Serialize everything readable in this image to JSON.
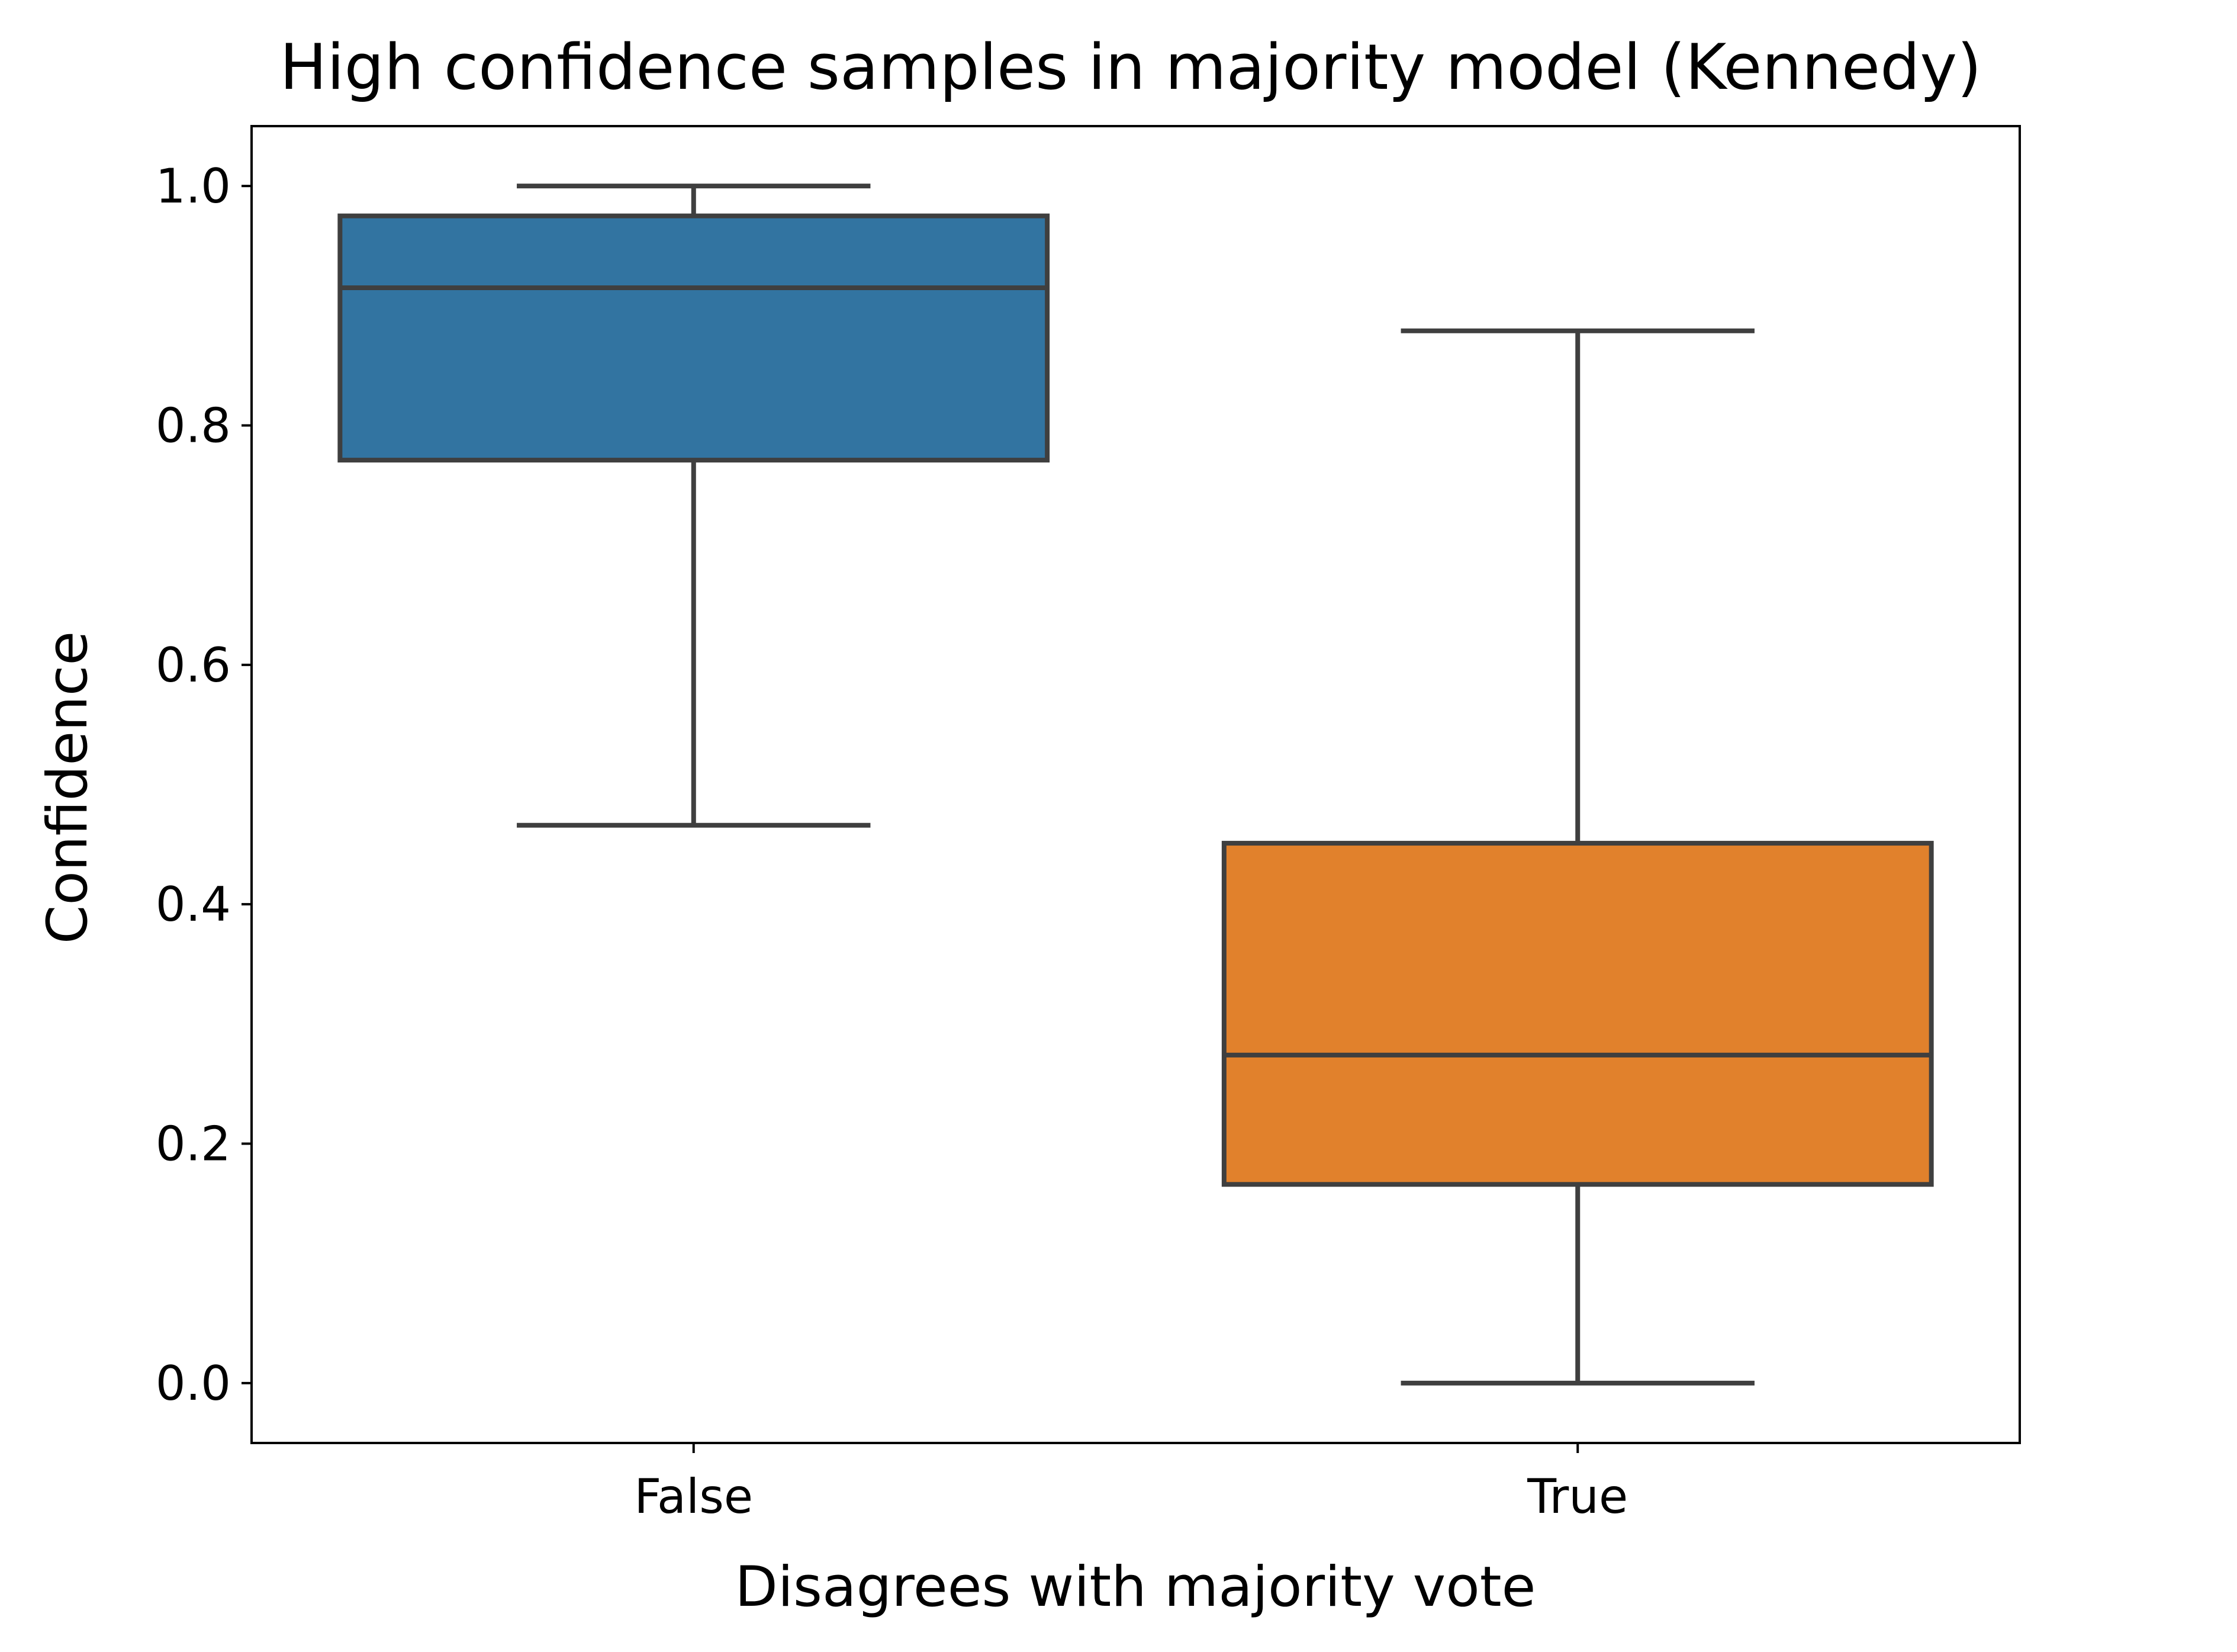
{
  "chart_data": {
    "type": "box",
    "title": "High confidence samples in majority model (Kennedy)",
    "xlabel": "Disagrees with majority vote",
    "ylabel": "Confidence",
    "ylim": [
      -0.05,
      1.05
    ],
    "yticks": [
      0.0,
      0.2,
      0.4,
      0.6,
      0.8,
      1.0
    ],
    "ytick_labels": [
      "0.0",
      "0.2",
      "0.4",
      "0.6",
      "0.8",
      "1.0"
    ],
    "grid": false,
    "categories": [
      "False",
      "True"
    ],
    "boxes": [
      {
        "category": "False",
        "whisker_low": 0.466,
        "q1": 0.771,
        "median": 0.915,
        "q3": 0.975,
        "whisker_high": 1.0,
        "color": "#3274a1"
      },
      {
        "category": "True",
        "whisker_low": 0.0,
        "q1": 0.166,
        "median": 0.274,
        "q3": 0.451,
        "whisker_high": 0.879,
        "color": "#e1812c"
      }
    ],
    "line_color": "#3f3f3f"
  }
}
